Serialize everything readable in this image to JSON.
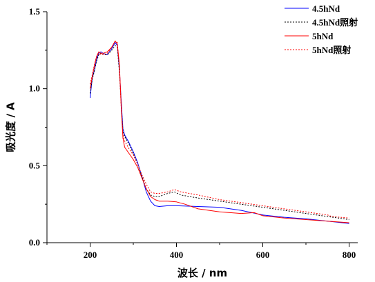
{
  "chart_data": {
    "type": "line",
    "title": "",
    "xlabel": "波长 / nm",
    "ylabel": "吸光度 / A",
    "xlim": [
      100,
      820
    ],
    "ylim": [
      0,
      1.5
    ],
    "xticks": [
      200,
      400,
      600,
      800
    ],
    "yticks": [
      0.0,
      0.5,
      1.0,
      1.5
    ],
    "x_tick_labels": [
      "200",
      "400",
      "600",
      "800"
    ],
    "y_tick_labels": [
      "0.0",
      "0.5",
      "1.0",
      "1.5"
    ],
    "grid": false,
    "legend_position": "top-right",
    "series": [
      {
        "name": "4.5hNd",
        "color": "#0000ff",
        "dash": "solid",
        "points": [
          [
            200,
            0.94
          ],
          [
            205,
            1.07
          ],
          [
            210,
            1.12
          ],
          [
            215,
            1.19
          ],
          [
            220,
            1.23
          ],
          [
            225,
            1.24
          ],
          [
            230,
            1.23
          ],
          [
            240,
            1.22
          ],
          [
            250,
            1.26
          ],
          [
            258,
            1.3
          ],
          [
            263,
            1.28
          ],
          [
            268,
            1.12
          ],
          [
            272,
            0.92
          ],
          [
            276,
            0.74
          ],
          [
            280,
            0.7
          ],
          [
            290,
            0.65
          ],
          [
            300,
            0.59
          ],
          [
            310,
            0.52
          ],
          [
            320,
            0.43
          ],
          [
            330,
            0.33
          ],
          [
            340,
            0.27
          ],
          [
            350,
            0.24
          ],
          [
            360,
            0.235
          ],
          [
            380,
            0.24
          ],
          [
            400,
            0.24
          ],
          [
            450,
            0.235
          ],
          [
            500,
            0.23
          ],
          [
            550,
            0.21
          ],
          [
            600,
            0.18
          ],
          [
            650,
            0.165
          ],
          [
            700,
            0.155
          ],
          [
            750,
            0.14
          ],
          [
            800,
            0.125
          ]
        ]
      },
      {
        "name": "4.5hNd照射",
        "color": "#000000",
        "dash": "dotted",
        "points": [
          [
            200,
            0.97
          ],
          [
            205,
            1.06
          ],
          [
            210,
            1.12
          ],
          [
            215,
            1.18
          ],
          [
            220,
            1.22
          ],
          [
            225,
            1.23
          ],
          [
            230,
            1.22
          ],
          [
            240,
            1.22
          ],
          [
            250,
            1.25
          ],
          [
            258,
            1.28
          ],
          [
            263,
            1.27
          ],
          [
            268,
            1.1
          ],
          [
            272,
            0.9
          ],
          [
            276,
            0.72
          ],
          [
            280,
            0.69
          ],
          [
            290,
            0.64
          ],
          [
            300,
            0.58
          ],
          [
            310,
            0.51
          ],
          [
            320,
            0.43
          ],
          [
            330,
            0.35
          ],
          [
            340,
            0.31
          ],
          [
            350,
            0.3
          ],
          [
            360,
            0.3
          ],
          [
            380,
            0.32
          ],
          [
            395,
            0.33
          ],
          [
            410,
            0.31
          ],
          [
            450,
            0.29
          ],
          [
            500,
            0.27
          ],
          [
            550,
            0.25
          ],
          [
            600,
            0.23
          ],
          [
            650,
            0.21
          ],
          [
            700,
            0.19
          ],
          [
            750,
            0.17
          ],
          [
            800,
            0.15
          ]
        ]
      },
      {
        "name": "5hNd",
        "color": "#ff0000",
        "dash": "solid",
        "points": [
          [
            200,
            1.0
          ],
          [
            205,
            1.08
          ],
          [
            210,
            1.15
          ],
          [
            215,
            1.21
          ],
          [
            220,
            1.24
          ],
          [
            225,
            1.23
          ],
          [
            230,
            1.23
          ],
          [
            240,
            1.24
          ],
          [
            250,
            1.27
          ],
          [
            258,
            1.31
          ],
          [
            263,
            1.29
          ],
          [
            268,
            1.15
          ],
          [
            272,
            0.88
          ],
          [
            276,
            0.68
          ],
          [
            280,
            0.62
          ],
          [
            290,
            0.58
          ],
          [
            300,
            0.54
          ],
          [
            310,
            0.49
          ],
          [
            320,
            0.42
          ],
          [
            330,
            0.35
          ],
          [
            340,
            0.3
          ],
          [
            350,
            0.28
          ],
          [
            360,
            0.27
          ],
          [
            380,
            0.27
          ],
          [
            400,
            0.265
          ],
          [
            420,
            0.25
          ],
          [
            450,
            0.22
          ],
          [
            500,
            0.2
          ],
          [
            550,
            0.19
          ],
          [
            580,
            0.195
          ],
          [
            600,
            0.175
          ],
          [
            650,
            0.16
          ],
          [
            700,
            0.15
          ],
          [
            750,
            0.14
          ],
          [
            800,
            0.13
          ]
        ]
      },
      {
        "name": "5hNd照射",
        "color": "#ff0000",
        "dash": "dotted",
        "points": [
          [
            200,
            1.03
          ],
          [
            205,
            1.09
          ],
          [
            210,
            1.16
          ],
          [
            215,
            1.21
          ],
          [
            220,
            1.23
          ],
          [
            225,
            1.22
          ],
          [
            230,
            1.22
          ],
          [
            240,
            1.23
          ],
          [
            250,
            1.27
          ],
          [
            258,
            1.31
          ],
          [
            263,
            1.3
          ],
          [
            268,
            1.13
          ],
          [
            272,
            0.88
          ],
          [
            276,
            0.7
          ],
          [
            280,
            0.66
          ],
          [
            290,
            0.61
          ],
          [
            300,
            0.57
          ],
          [
            310,
            0.51
          ],
          [
            320,
            0.44
          ],
          [
            330,
            0.38
          ],
          [
            340,
            0.33
          ],
          [
            350,
            0.32
          ],
          [
            360,
            0.32
          ],
          [
            380,
            0.33
          ],
          [
            395,
            0.345
          ],
          [
            410,
            0.33
          ],
          [
            450,
            0.31
          ],
          [
            500,
            0.28
          ],
          [
            550,
            0.26
          ],
          [
            600,
            0.24
          ],
          [
            650,
            0.22
          ],
          [
            700,
            0.2
          ],
          [
            750,
            0.18
          ],
          [
            760,
            0.17
          ],
          [
            800,
            0.16
          ]
        ]
      }
    ]
  }
}
